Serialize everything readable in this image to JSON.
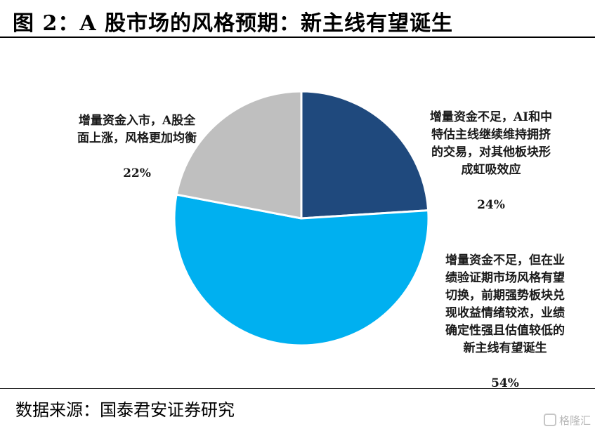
{
  "title": "图 2：A 股市场的风格预期：新主线有望诞生",
  "source": "数据来源：国泰君安证券研究",
  "watermark": "格隆汇",
  "chart_data": {
    "type": "pie",
    "start_angle_deg": 0,
    "direction": "clockwise",
    "slices": [
      {
        "label": "增量资金不足，AI和中\n特估主线继续维持拥挤\n的交易，对其他板块形\n成虹吸效应",
        "percent_label": "24%",
        "value": 24,
        "color": "#1f497d"
      },
      {
        "label": "增量资金不足，但在业\n绩验证期市场风格有望\n切换，前期强势板块兑\n现收益情绪较浓，业绩\n确定性强且估值较低的\n新主线有望诞生",
        "percent_label": "54%",
        "value": 54,
        "color": "#00b0f0"
      },
      {
        "label": "增量资金入市，A股全\n面上涨，风格更加均衡",
        "percent_label": "22%",
        "value": 22,
        "color": "#bfbfbf"
      }
    ]
  }
}
